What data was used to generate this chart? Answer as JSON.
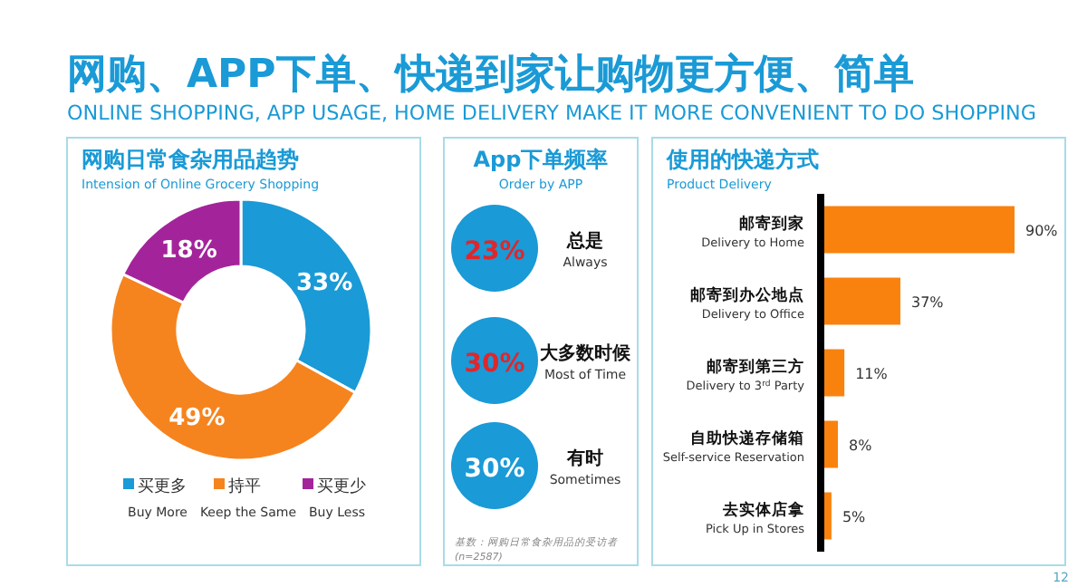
{
  "chart_data": [
    {
      "type": "other",
      "title": "网购、APP下单、快递到家让购物更方便、简单",
      "subtitle": "ONLINE SHOPPING, APP USAGE, HOME DELIVERY MAKE IT MORE CONVENIENT TO DO SHOPPING",
      "annotations": [
        "12"
      ]
    },
    {
      "type": "donut",
      "title": "网购日常食杂用品趋势",
      "subtitle": "Intension of Online Grocery Shopping",
      "categories": [
        "买更多\nBuy More",
        "持平\nKeep the Same",
        "买更少\nBuy Less"
      ],
      "values": [
        33,
        49,
        18
      ],
      "value_labels": [
        "33%",
        "49%",
        "18%"
      ],
      "colors": [
        "#1a9ad6",
        "#f5841f",
        "#a3249a"
      ],
      "legend": "bottom"
    },
    {
      "type": "other",
      "title": "App下单频率",
      "subtitle": "Order by APP",
      "categories": [
        "总是\nAlways",
        "大多数时候\nMost of Time",
        "有时\nSometimes"
      ],
      "values": [
        23,
        30,
        30
      ],
      "value_labels": [
        "23%",
        "30%",
        "30%"
      ],
      "colors": [
        "#1a9ad6",
        "#1a9ad6",
        "#1a9ad6"
      ],
      "annotations": [
        "基数：网购日常食杂用品的受访者\n(n=2587)"
      ]
    },
    {
      "type": "bar",
      "orientation": "horizontal",
      "title": "使用的快递方式",
      "subtitle": "Product Delivery",
      "categories": [
        "邮寄到家\nDelivery to Home",
        "邮寄到办公地点\nDelivery to Office",
        "邮寄到第三方\nDelivery to 3$^{rd}$ Party",
        "自助快递存储箱\nSelf-service Reservation",
        "去实体店拿\nPick Up in Stores"
      ],
      "values": [
        90,
        37,
        11,
        8,
        5
      ],
      "value_labels": [
        "90%",
        "37%",
        "11%",
        "8%",
        "5%"
      ],
      "color": "#f9820f"
    }
  ]
}
